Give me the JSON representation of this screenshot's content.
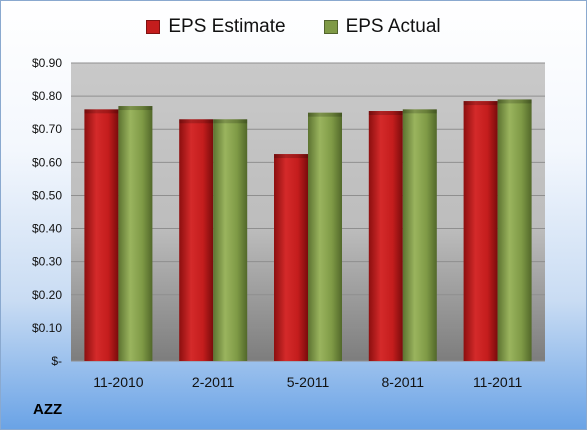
{
  "chart_data": {
    "type": "bar",
    "categories": [
      "11-2010",
      "2-2011",
      "5-2011",
      "8-2011",
      "11-2011"
    ],
    "series": [
      {
        "name": "EPS Estimate",
        "values": [
          0.76,
          0.73,
          0.625,
          0.755,
          0.785
        ],
        "color": "#c41d1d"
      },
      {
        "name": "EPS Actual",
        "values": [
          0.77,
          0.73,
          0.75,
          0.76,
          0.79
        ],
        "color": "#7f9a46"
      }
    ],
    "yticks": [
      {
        "value": 0,
        "label": "$-"
      },
      {
        "value": 0.1,
        "label": "$0.10"
      },
      {
        "value": 0.2,
        "label": "$0.20"
      },
      {
        "value": 0.3,
        "label": "$0.30"
      },
      {
        "value": 0.4,
        "label": "$0.40"
      },
      {
        "value": 0.5,
        "label": "$0.50"
      },
      {
        "value": 0.6,
        "label": "$0.60"
      },
      {
        "value": 0.7,
        "label": "$0.70"
      },
      {
        "value": 0.8,
        "label": "$0.80"
      },
      {
        "value": 0.9,
        "label": "$0.90"
      }
    ],
    "ylim": [
      0,
      0.9
    ],
    "grid": true,
    "legend": "top-center"
  },
  "ticker": "AZZ"
}
